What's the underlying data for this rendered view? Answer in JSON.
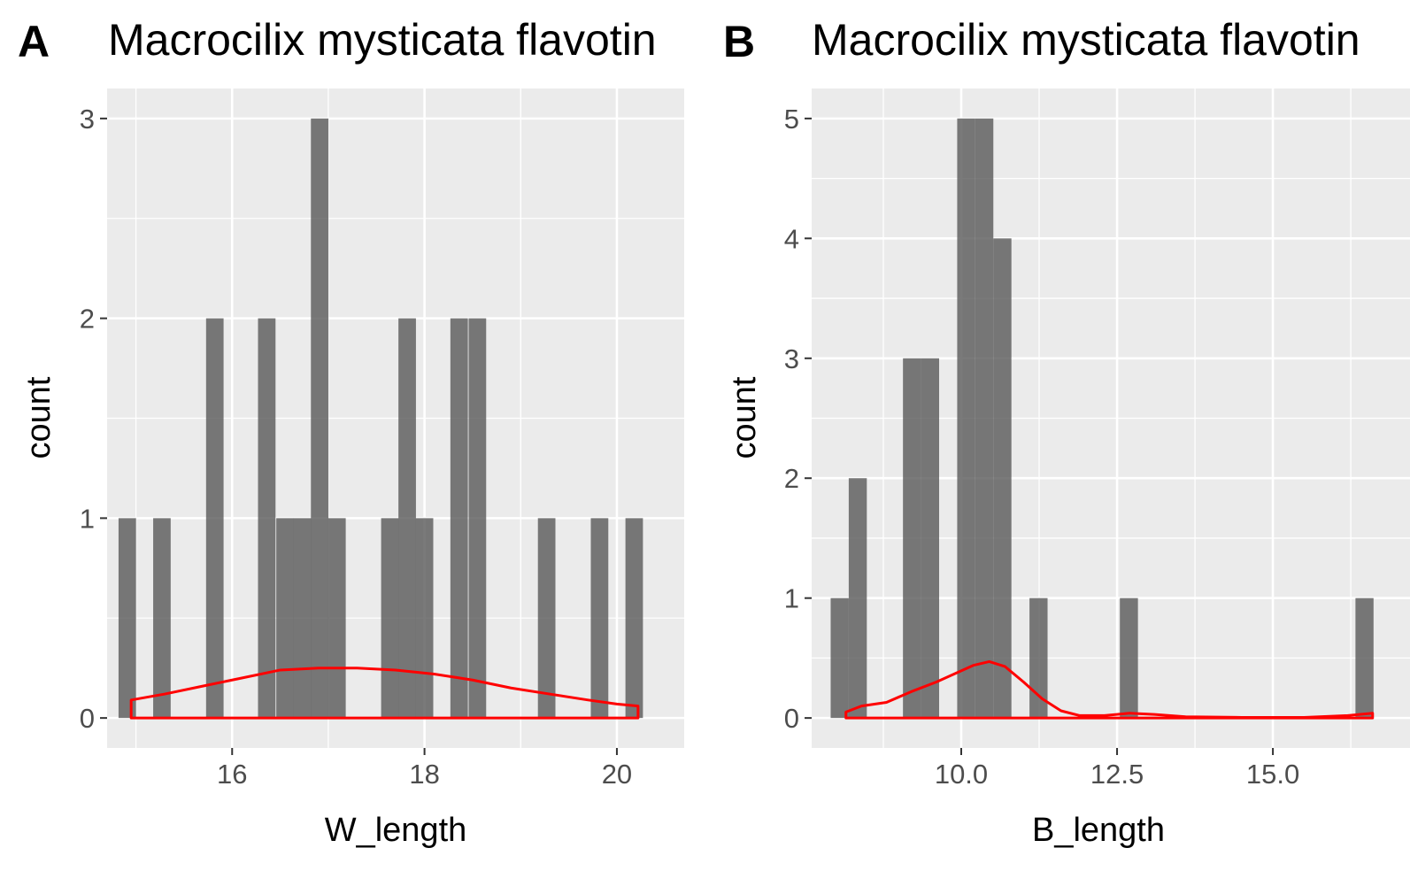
{
  "chart_data": [
    {
      "type": "bar",
      "tag": "A",
      "title": "Macrocilix mysticata flavotin",
      "xlabel": "W_length",
      "ylabel": "count",
      "xlim": [
        14.7,
        20.7
      ],
      "ylim": [
        -0.15,
        3.15
      ],
      "x_ticks": [
        16,
        18,
        20
      ],
      "x_tick_labels": [
        "16",
        "18",
        "20"
      ],
      "y_ticks": [
        0,
        1,
        2,
        3
      ],
      "y_tick_labels": [
        "0",
        "1",
        "2",
        "3"
      ],
      "bin_width": 0.182,
      "bars": [
        {
          "x": 14.91,
          "count": 1
        },
        {
          "x": 15.27,
          "count": 1
        },
        {
          "x": 15.82,
          "count": 2
        },
        {
          "x": 16.36,
          "count": 2
        },
        {
          "x": 16.55,
          "count": 1
        },
        {
          "x": 16.73,
          "count": 1
        },
        {
          "x": 16.91,
          "count": 3
        },
        {
          "x": 17.09,
          "count": 1
        },
        {
          "x": 17.64,
          "count": 1
        },
        {
          "x": 17.82,
          "count": 2
        },
        {
          "x": 18.0,
          "count": 1
        },
        {
          "x": 18.36,
          "count": 2
        },
        {
          "x": 18.55,
          "count": 2
        },
        {
          "x": 19.27,
          "count": 1
        },
        {
          "x": 19.82,
          "count": 1
        },
        {
          "x": 20.18,
          "count": 1
        }
      ],
      "density": {
        "x": [
          14.95,
          15.3,
          15.7,
          16.1,
          16.5,
          16.9,
          17.3,
          17.7,
          18.1,
          18.5,
          18.9,
          19.3,
          19.7,
          20.0,
          20.22
        ],
        "y": [
          0.09,
          0.12,
          0.16,
          0.2,
          0.24,
          0.25,
          0.25,
          0.24,
          0.22,
          0.19,
          0.15,
          0.12,
          0.09,
          0.07,
          0.06
        ]
      },
      "colors": {
        "bar": "#595959",
        "density": "#ff0000",
        "panel": "#ebebeb",
        "grid": "#ffffff"
      }
    },
    {
      "type": "bar",
      "tag": "B",
      "title": "Macrocilix mysticata flavotin",
      "xlabel": "B_length",
      "ylabel": "count",
      "xlim": [
        7.6,
        17.2
      ],
      "ylim": [
        -0.25,
        5.25
      ],
      "x_ticks": [
        10,
        12.5,
        15
      ],
      "x_tick_labels": [
        "10.0",
        "12.5",
        "15.0"
      ],
      "y_ticks": [
        0,
        1,
        2,
        3,
        4,
        5
      ],
      "y_tick_labels": [
        "0",
        "1",
        "2",
        "3",
        "4",
        "5"
      ],
      "bin_width": 0.29,
      "bars": [
        {
          "x": 8.05,
          "count": 1
        },
        {
          "x": 8.34,
          "count": 2
        },
        {
          "x": 9.21,
          "count": 3
        },
        {
          "x": 9.5,
          "count": 3
        },
        {
          "x": 10.08,
          "count": 5
        },
        {
          "x": 10.37,
          "count": 5
        },
        {
          "x": 10.66,
          "count": 4
        },
        {
          "x": 11.24,
          "count": 1
        },
        {
          "x": 12.69,
          "count": 1
        },
        {
          "x": 16.47,
          "count": 1
        }
      ],
      "density": {
        "x": [
          8.15,
          8.4,
          8.8,
          9.2,
          9.6,
          9.9,
          10.2,
          10.45,
          10.7,
          11.0,
          11.3,
          11.6,
          11.9,
          12.3,
          12.7,
          13.1,
          13.6,
          14.5,
          15.5,
          16.2,
          16.6
        ],
        "y": [
          0.05,
          0.1,
          0.13,
          0.22,
          0.3,
          0.37,
          0.44,
          0.47,
          0.43,
          0.3,
          0.16,
          0.06,
          0.02,
          0.02,
          0.04,
          0.03,
          0.01,
          0.005,
          0.005,
          0.02,
          0.04
        ]
      },
      "colors": {
        "bar": "#595959",
        "density": "#ff0000",
        "panel": "#ebebeb",
        "grid": "#ffffff"
      }
    }
  ]
}
